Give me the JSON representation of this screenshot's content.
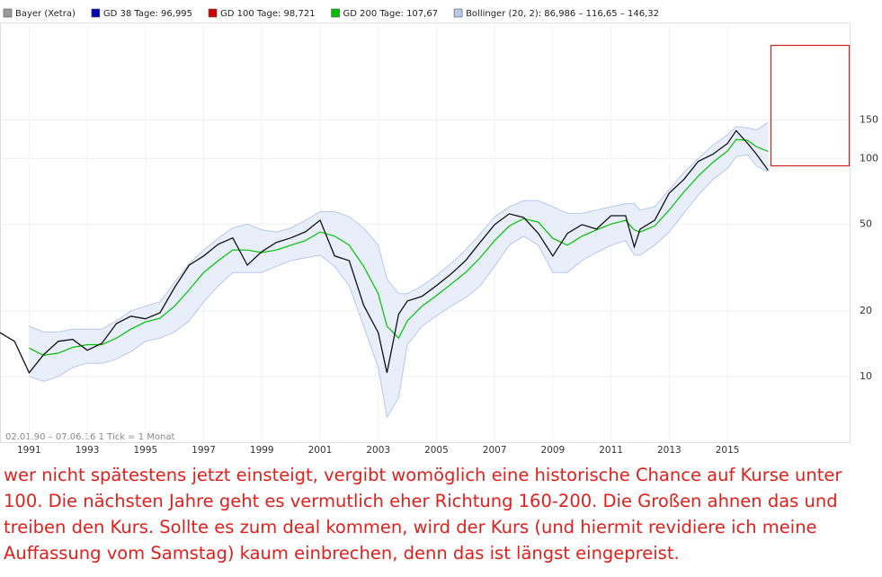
{
  "chart_data": {
    "type": "stock",
    "legend": [
      {
        "label": "Bayer (Xetra)",
        "color": "#9a9a9a"
      },
      {
        "label": "GD 38 Tage: 96,995",
        "color": "#0000b0"
      },
      {
        "label": "GD 100 Tage: 98,721",
        "color": "#d00000"
      },
      {
        "label": "GD 200 Tage: 107,67",
        "color": "#00c000"
      },
      {
        "label": "Bollinger (20, 2): 86,986 – 116,65 – 146,32",
        "color": "#b8c8ea"
      }
    ],
    "footnote": "02.01.90 – 07.06.16   1 Tick = 1 Monat",
    "log_scale": true,
    "grid": true,
    "xlim": [
      1990,
      2019.2
    ],
    "xticks": [
      1991,
      1993,
      1995,
      1997,
      1999,
      2001,
      2003,
      2005,
      2007,
      2009,
      2011,
      2013,
      2015
    ],
    "ylim": [
      5,
      420
    ],
    "yticks": [
      10,
      20,
      50,
      100,
      150
    ],
    "x": [
      1990.0,
      1990.5,
      1991.0,
      1991.5,
      1992.0,
      1992.5,
      1993.0,
      1993.5,
      1994.0,
      1994.5,
      1995.0,
      1995.5,
      1996.0,
      1996.5,
      1997.0,
      1997.5,
      1998.0,
      1998.5,
      1999.0,
      1999.5,
      2000.0,
      2000.5,
      2001.0,
      2001.5,
      2002.0,
      2002.5,
      2003.0,
      2003.3,
      2003.7,
      2004.0,
      2004.5,
      2005.0,
      2005.5,
      2006.0,
      2006.5,
      2007.0,
      2007.5,
      2008.0,
      2008.5,
      2009.0,
      2009.5,
      2010.0,
      2010.5,
      2011.0,
      2011.5,
      2011.8,
      2012.0,
      2012.5,
      2013.0,
      2013.5,
      2014.0,
      2014.5,
      2015.0,
      2015.3,
      2015.7,
      2016.0,
      2016.4
    ],
    "price": {
      "color": "#111111",
      "values": [
        15.9,
        14.5,
        10.4,
        12.6,
        14.5,
        14.8,
        13.2,
        14.2,
        17.5,
        18.9,
        18.4,
        19.6,
        25.6,
        32.4,
        35.7,
        40.4,
        43.2,
        32.4,
        37.4,
        41.2,
        43.2,
        46.1,
        52.1,
        35.7,
        34.0,
        21.2,
        15.9,
        10.4,
        19.3,
        22.2,
        23.3,
        26.1,
        29.5,
        34.0,
        41.2,
        49.7,
        55.7,
        53.6,
        45.3,
        35.7,
        45.3,
        49.7,
        47.4,
        54.6,
        54.6,
        39.3,
        47.4,
        52.1,
        69.3,
        80.0,
        97.0,
        104.5,
        117,
        134,
        117,
        104.5,
        88.2
      ]
    },
    "gd200": {
      "color": "#00c000",
      "values": [
        null,
        null,
        13.5,
        12.5,
        12.8,
        13.6,
        14.0,
        14.0,
        15.0,
        16.5,
        17.8,
        18.5,
        21,
        25,
        30,
        34,
        38,
        38,
        37,
        38,
        40,
        42,
        46,
        44,
        40,
        32,
        24,
        17,
        15,
        18,
        21,
        23.5,
        26.5,
        30,
        35,
        42,
        49,
        53,
        51,
        43,
        40,
        44,
        47,
        50,
        52,
        47,
        46,
        49,
        58,
        70,
        83,
        96,
        108,
        122,
        121,
        113,
        107.67
      ]
    },
    "bollinger": {
      "color": "#b8c8ea",
      "upper": [
        null,
        null,
        17,
        16,
        16,
        16.5,
        16.5,
        16.5,
        18,
        20,
        21,
        22,
        27,
        33,
        38,
        43,
        48,
        50,
        47,
        46,
        48,
        52,
        57,
        57,
        54,
        48,
        40,
        28,
        24,
        24,
        26,
        29,
        33,
        38,
        45,
        54,
        60,
        64,
        64,
        60,
        56,
        56,
        58,
        60,
        62,
        62,
        58,
        60,
        72,
        86,
        100,
        115,
        128,
        140,
        138,
        135,
        146.32
      ],
      "lower": [
        null,
        null,
        10,
        9.5,
        10,
        11,
        11.5,
        11.5,
        12,
        13,
        14.5,
        15,
        16,
        18,
        22,
        26,
        30,
        30,
        30,
        32,
        34,
        35,
        36,
        32,
        26,
        17,
        11,
        6.5,
        8,
        14,
        17,
        19,
        21,
        23,
        26,
        32,
        40,
        44,
        40,
        30,
        30,
        34,
        37,
        40,
        42,
        36,
        36,
        40,
        46,
        56,
        68,
        80,
        90,
        102,
        104,
        92,
        86.986
      ]
    }
  },
  "comment": "wer nicht spätestens jetzt einsteigt, vergibt womöglich eine historische Chance auf Kurse unter 100. Die nächsten Jahre geht es vermutlich eher Richtung 160-200. Die Großen ahnen das und treiben den Kurs. Sollte es zum deal kommen, wird der Kurs (und hiermit revidiere ich meine Auffassung vom Samstag) kaum einbrechen, denn das ist längst eingepreist."
}
